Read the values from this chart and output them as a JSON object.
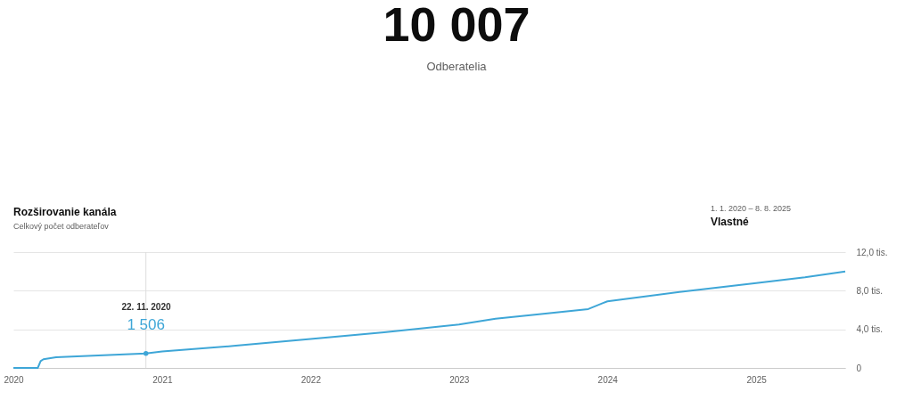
{
  "chart_data": {
    "type": "line",
    "title": "Rozširovanie kanála",
    "subtitle": "Celkový počet odberateľov",
    "annotations": [
      "10 007",
      "Odberatelia",
      "1. 1. 2020 – 8. 8. 2025",
      "Vlastné",
      "22. 11. 2020",
      {
        "text": "1 506",
        "x": "2020-11-22",
        "y": 1.506
      }
    ],
    "x": [
      "2020-01-01",
      "2020-03-01",
      "2020-03-08",
      "2020-03-15",
      "2020-04-15",
      "2020-11-22",
      "2021-01-01",
      "2021-07-01",
      "2022-01-01",
      "2022-07-01",
      "2023-01-01",
      "2023-04-01",
      "2023-07-01",
      "2023-11-15",
      "2023-12-20",
      "2024-01-01",
      "2024-07-01",
      "2025-01-01",
      "2025-05-01",
      "2025-08-08"
    ],
    "series": [
      {
        "color": "#3ea6d7",
        "values": [
          0,
          0,
          0.7,
          0.9,
          1.1,
          1.506,
          1.7,
          2.3,
          3.0,
          3.7,
          4.5,
          5.1,
          5.5,
          6.1,
          6.7,
          6.9,
          7.9,
          8.8,
          9.4,
          10.0
        ]
      }
    ],
    "xlim": [
      "2020-01-01",
      "2025-08-08"
    ],
    "xticks": [
      "2020",
      "2021",
      "2022",
      "2023",
      "2024",
      "2025"
    ],
    "ylim": [
      0,
      12
    ],
    "yticks": [
      {
        "value": 0,
        "label": "0"
      },
      {
        "value": 4,
        "label": "4,0 tis."
      },
      {
        "value": 8,
        "label": "8,0 tis."
      },
      {
        "value": 12,
        "label": "12,0 tis."
      }
    ],
    "ref_lines": [
      {
        "axis": "x",
        "value": "2020-11-22",
        "label": null,
        "color": "#dddddd"
      }
    ],
    "grid": "y",
    "marker": "none",
    "line_style": "solid"
  }
}
